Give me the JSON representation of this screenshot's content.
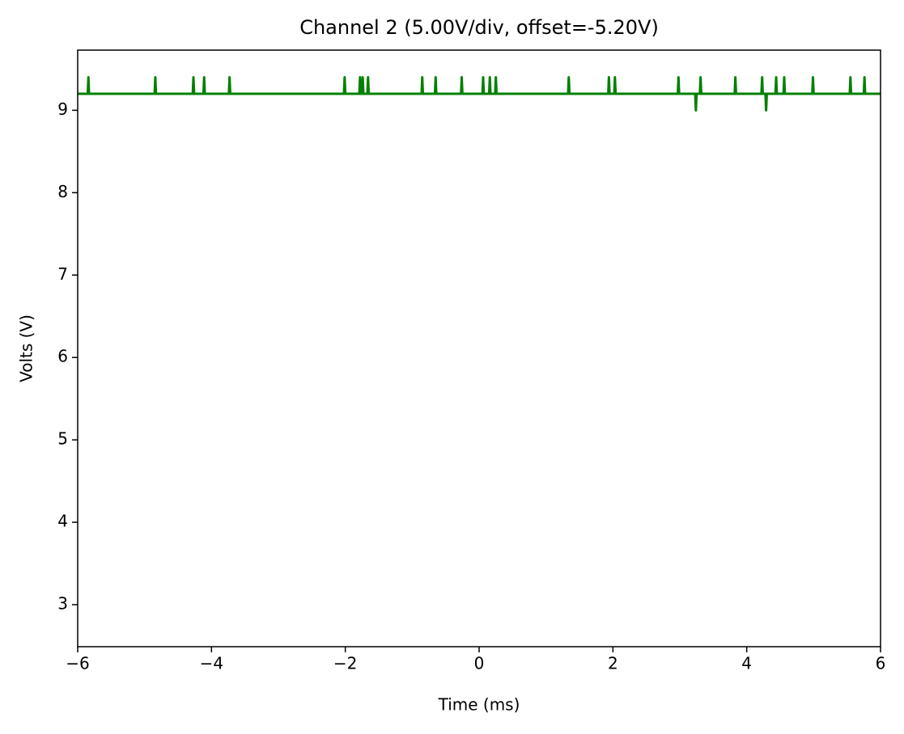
{
  "chart_data": {
    "type": "line",
    "title": "Channel 2 (5.00V/div, offset=-5.20V)",
    "xlabel": "Time (ms)",
    "ylabel": "Volts (V)",
    "color": "#008000",
    "x": [
      -6,
      -5.85,
      -5.84,
      -5.83,
      -4.85,
      -4.84,
      -4.83,
      -4.28,
      -4.27,
      -4.26,
      -4.12,
      -4.11,
      -4.1,
      -3.74,
      -3.73,
      -3.72,
      -2.02,
      -2.01,
      -2,
      -1.79,
      -1.78,
      -1.77,
      -1.75,
      -1.74,
      -1.73,
      -1.67,
      -1.66,
      -1.65,
      -0.86,
      -0.85,
      -0.84,
      -0.66,
      -0.65,
      -0.64,
      -0.27,
      -0.26,
      -0.25,
      0.05,
      0.06,
      0.07,
      0.15,
      0.16,
      0.17,
      0.24,
      0.25,
      0.26,
      1.33,
      1.34,
      1.35,
      1.93,
      1.94,
      1.95,
      2.02,
      2.03,
      2.04,
      2.97,
      2.98,
      2.99,
      3.23,
      3.24,
      3.25,
      3.3,
      3.31,
      3.32,
      3.82,
      3.83,
      3.84,
      4.22,
      4.23,
      4.24,
      4.28,
      4.29,
      4.3,
      4.43,
      4.44,
      4.45,
      4.55,
      4.56,
      4.57,
      4.98,
      4.99,
      5,
      5.54,
      5.55,
      5.56,
      5.75,
      5.76,
      5.77,
      6
    ],
    "values": [
      9.2,
      9.2,
      9.4,
      9.2,
      9.2,
      9.4,
      9.2,
      9.2,
      9.4,
      9.2,
      9.2,
      9.4,
      9.2,
      9.2,
      9.4,
      9.2,
      9.2,
      9.4,
      9.2,
      9.2,
      9.4,
      9.2,
      9.2,
      9.4,
      9.2,
      9.2,
      9.4,
      9.2,
      9.2,
      9.4,
      9.2,
      9.2,
      9.4,
      9.2,
      9.2,
      9.4,
      9.2,
      9.2,
      9.4,
      9.2,
      9.2,
      9.4,
      9.2,
      9.2,
      9.4,
      9.2,
      9.2,
      9.4,
      9.2,
      9.2,
      9.4,
      9.2,
      9.2,
      9.4,
      9.2,
      9.2,
      9.4,
      9.2,
      9.2,
      9.0,
      9.2,
      9.2,
      9.4,
      9.2,
      9.2,
      9.4,
      9.2,
      9.2,
      9.4,
      9.2,
      9.2,
      9.0,
      9.2,
      9.2,
      9.4,
      9.2,
      9.2,
      9.4,
      9.2,
      9.2,
      9.4,
      9.2,
      9.2,
      9.4,
      9.2,
      9.2,
      9.4,
      9.2,
      9.2
    ],
    "xlim": [
      -6,
      6
    ],
    "xticks": [
      {
        "value": -6,
        "label": "−6"
      },
      {
        "value": -4,
        "label": "−4"
      },
      {
        "value": -2,
        "label": "−2"
      },
      0,
      2,
      4,
      6
    ],
    "ylim": [
      2.49,
      9.73
    ],
    "yticks": [
      3,
      4,
      5,
      6,
      7,
      8,
      9
    ]
  }
}
